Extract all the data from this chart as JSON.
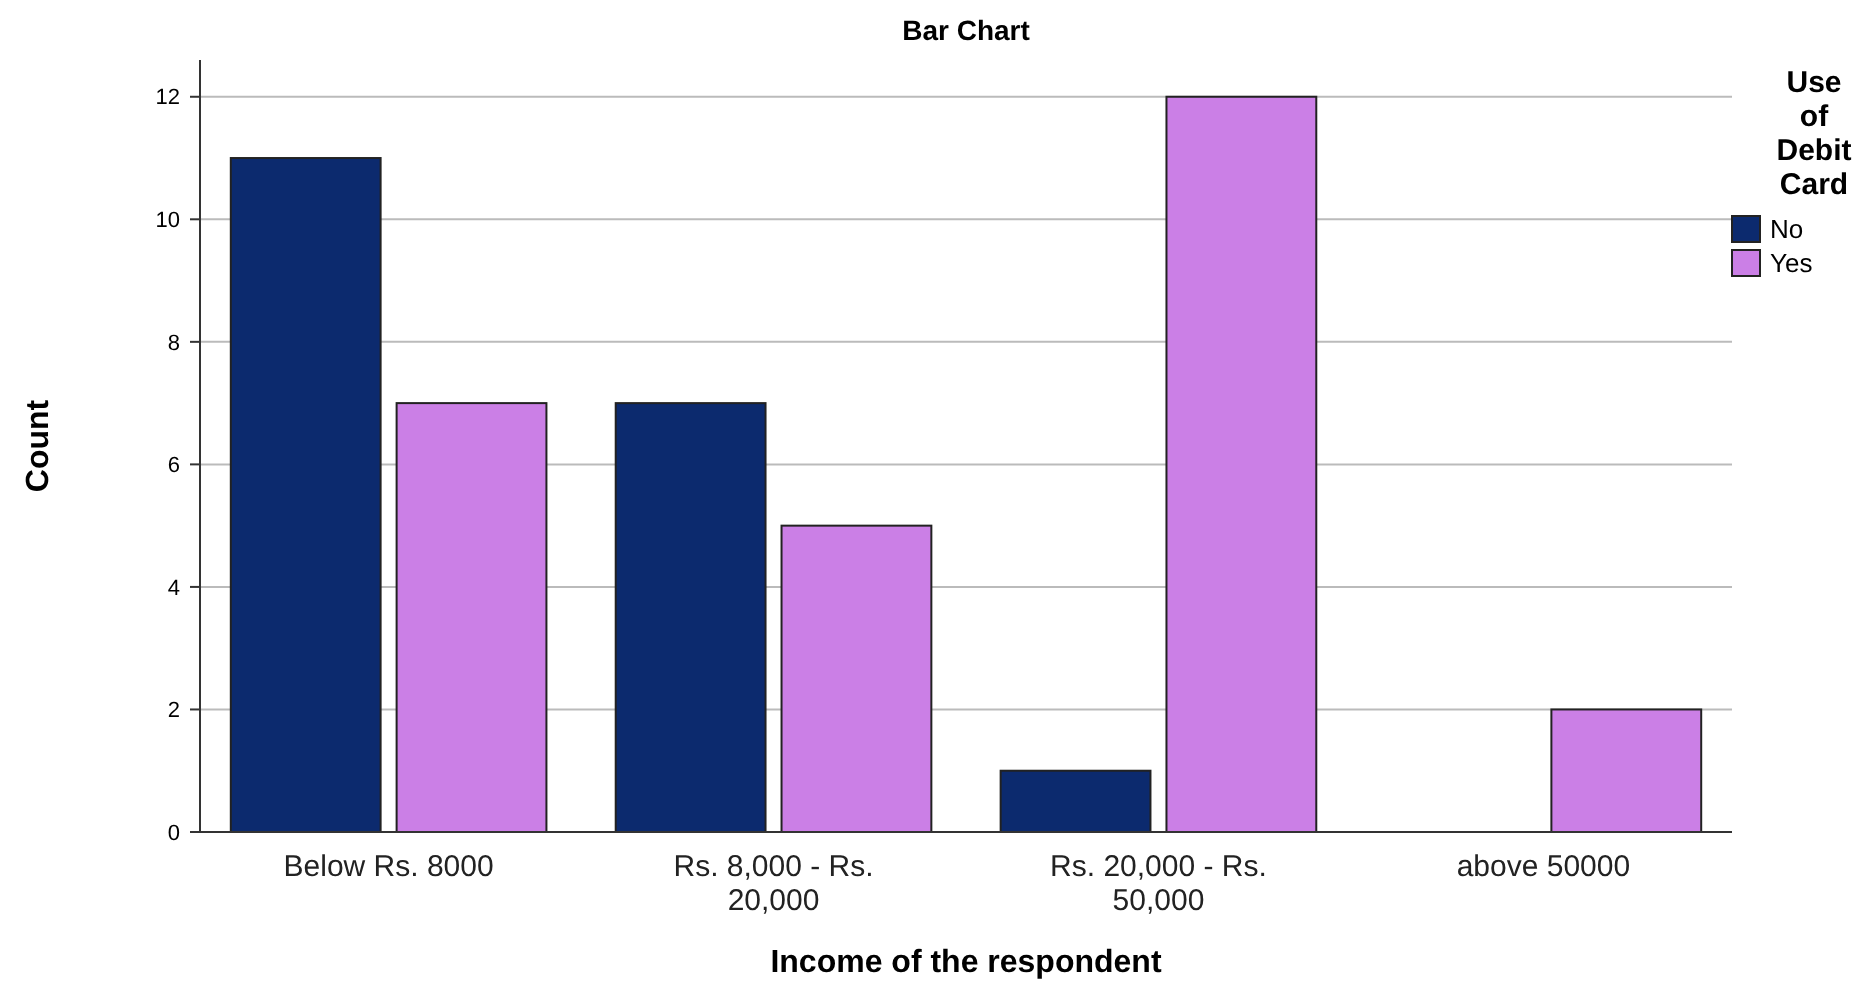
{
  "chart_data": {
    "type": "bar",
    "title": "Bar Chart",
    "xlabel": "Income of the respondent",
    "ylabel": "Count",
    "legend_title": "Use of Debit Card",
    "categories": [
      "Below Rs. 8000",
      "Rs. 8,000 - Rs. 20,000",
      "Rs. 20,000 - Rs. 50,000",
      "above 50000"
    ],
    "series": [
      {
        "name": "No",
        "color": "#0c2a6e",
        "values": [
          11,
          7,
          1,
          null
        ]
      },
      {
        "name": "Yes",
        "color": "#cb7fe6",
        "values": [
          7,
          5,
          12,
          2
        ]
      }
    ],
    "ylim": [
      0,
      12.6
    ],
    "yticks": [
      0,
      2,
      4,
      6,
      8,
      10,
      12
    ],
    "grid": "y",
    "legend": "top right"
  }
}
